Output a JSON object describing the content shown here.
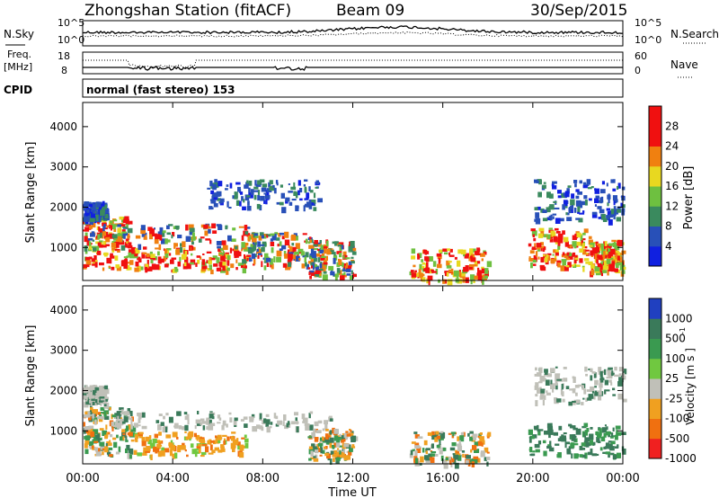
{
  "header": {
    "station": "Zhongshan Station (fitACF)",
    "beam": "Beam 09",
    "date": "30/Sep/2015"
  },
  "panels": {
    "nsky": {
      "left_label": "N.Sky",
      "right_label": "N.Search",
      "ticks_left": [
        "10^5",
        "10^0"
      ],
      "ticks_right": [
        "10^5",
        "10^0"
      ]
    },
    "freq": {
      "left_label_1": "Freq.",
      "left_label_2": "[MHz]",
      "right_label": "Nave",
      "ticks_left": [
        "18",
        "8"
      ],
      "ticks_right": [
        "60",
        "0"
      ]
    },
    "cpid": {
      "left_label": "CPID",
      "text": "normal (fast stereo) 153"
    }
  },
  "chart_data": [
    {
      "type": "heatmap",
      "name": "power",
      "ylabel": "Slant Range [km]",
      "ylim": [
        180,
        4600
      ],
      "yticks": [
        1000,
        2000,
        3000,
        4000
      ],
      "colorbar": {
        "label": "Power [dB]",
        "range": [
          0,
          32
        ],
        "ticks": [
          "4",
          "8",
          "12",
          "16",
          "20",
          "24",
          "28"
        ],
        "colors": [
          "#1020e0",
          "#2850b8",
          "#3a8a5e",
          "#6ec040",
          "#e8d820",
          "#f08010",
          "#f01010"
        ]
      },
      "regions": [
        {
          "t": [
            0.0,
            2.2
          ],
          "r": [
            500,
            1800
          ],
          "level": "high"
        },
        {
          "t": [
            2.2,
            7.3
          ],
          "r": [
            450,
            1000
          ],
          "level": "high"
        },
        {
          "t": [
            0.0,
            7.5
          ],
          "r": [
            1000,
            1600
          ],
          "level": "medium"
        },
        {
          "t": [
            0.0,
            1.0
          ],
          "r": [
            1700,
            2150
          ],
          "level": "low"
        },
        {
          "t": [
            7.0,
            10.2
          ],
          "r": [
            550,
            1400
          ],
          "level": "medium"
        },
        {
          "t": [
            5.5,
            10.5
          ],
          "r": [
            2000,
            2700
          ],
          "level": "low"
        },
        {
          "t": [
            10.0,
            12.0
          ],
          "r": [
            300,
            1200
          ],
          "level": "medium"
        },
        {
          "t": [
            14.5,
            18.0
          ],
          "r": [
            200,
            1000
          ],
          "level": "high"
        },
        {
          "t": [
            19.8,
            22.5
          ],
          "r": [
            500,
            1500
          ],
          "level": "high"
        },
        {
          "t": [
            22.5,
            24.0
          ],
          "r": [
            400,
            1200
          ],
          "level": "high"
        },
        {
          "t": [
            20.0,
            24.0
          ],
          "r": [
            1700,
            2700
          ],
          "level": "low"
        }
      ]
    },
    {
      "type": "heatmap",
      "name": "velocity",
      "xlabel": "Time UT",
      "ylabel": "Slant Range [km]",
      "ylim": [
        180,
        4600
      ],
      "yticks": [
        1000,
        2000,
        3000,
        4000
      ],
      "xticks": [
        "00:00",
        "04:00",
        "08:00",
        "12:00",
        "16:00",
        "20:00",
        "00:00"
      ],
      "colorbar": {
        "label": "Velocity [m s^-1]",
        "ticks": [
          "1000",
          "500",
          "100",
          "25",
          "-25",
          "-100",
          "-500",
          "-1000"
        ],
        "colors": [
          "#2040c0",
          "#3a7a5a",
          "#3a9a50",
          "#70c840",
          "#c0c0b8",
          "#f0a020",
          "#f07010",
          "#f02020"
        ]
      },
      "regions": [
        {
          "t": [
            0.0,
            2.2
          ],
          "r": [
            400,
            1600
          ],
          "level": "mixed"
        },
        {
          "t": [
            2.2,
            7.3
          ],
          "r": [
            400,
            1000
          ],
          "level": "negative"
        },
        {
          "t": [
            0.0,
            11.0
          ],
          "r": [
            1100,
            1500
          ],
          "level": "ground"
        },
        {
          "t": [
            0.0,
            1.0
          ],
          "r": [
            1700,
            2150
          ],
          "level": "ground"
        },
        {
          "t": [
            10.0,
            12.0
          ],
          "r": [
            300,
            1100
          ],
          "level": "mixed"
        },
        {
          "t": [
            14.5,
            18.0
          ],
          "r": [
            200,
            1000
          ],
          "level": "mixed"
        },
        {
          "t": [
            19.8,
            24.0
          ],
          "r": [
            400,
            1200
          ],
          "level": "positive"
        },
        {
          "t": [
            20.0,
            24.0
          ],
          "r": [
            1700,
            2600
          ],
          "level": "ground"
        }
      ]
    }
  ],
  "axes": {
    "time_label": "Time UT",
    "range_label": "Slant Range [km]",
    "power_cbar_label": "Power [dB]",
    "velocity_cbar_label": "Velocity [m s  ]",
    "velocity_cbar_exp": "-1"
  }
}
